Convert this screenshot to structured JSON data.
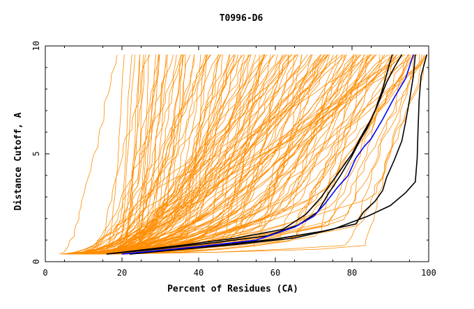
{
  "chart_data": {
    "type": "line",
    "title": "T0996-D6",
    "xlabel": "Percent of Residues (CA)",
    "ylabel": "Distance Cutoff, A",
    "xlim": [
      0,
      100
    ],
    "ylim": [
      0,
      10
    ],
    "x_ticks": [
      0,
      20,
      40,
      60,
      80,
      100
    ],
    "y_ticks": [
      0,
      5,
      10
    ],
    "x_tick_labels": [
      "0",
      "20",
      "40",
      "60",
      "80",
      "100"
    ],
    "y_tick_labels": [
      "0",
      "5",
      "10"
    ],
    "grid": false,
    "legend": "none",
    "colors": {
      "other_models": "#ff8c00",
      "highlight_black": "#000000",
      "highlight_blue": "#0000ff"
    },
    "highlighted_series": [
      {
        "color": "black",
        "points": [
          [
            16,
            0.35
          ],
          [
            30,
            0.6
          ],
          [
            45,
            0.9
          ],
          [
            58,
            1.2
          ],
          [
            66,
            1.7
          ],
          [
            71,
            2.3
          ],
          [
            74,
            3.2
          ],
          [
            77,
            4.0
          ],
          [
            80,
            4.9
          ],
          [
            82,
            5.6
          ],
          [
            84,
            6.2
          ],
          [
            86,
            7.0
          ],
          [
            88,
            8.0
          ],
          [
            89.5,
            9.0
          ],
          [
            90.5,
            9.6
          ]
        ]
      },
      {
        "color": "black",
        "points": [
          [
            16,
            0.35
          ],
          [
            35,
            0.75
          ],
          [
            50,
            1.1
          ],
          [
            62,
            1.5
          ],
          [
            68,
            2.2
          ],
          [
            72,
            3.0
          ],
          [
            76,
            4.0
          ],
          [
            80,
            5.0
          ],
          [
            83,
            6.0
          ],
          [
            85,
            6.6
          ],
          [
            87,
            7.4
          ],
          [
            89,
            8.3
          ],
          [
            91,
            9.0
          ],
          [
            93,
            9.6
          ]
        ]
      },
      {
        "color": "black",
        "points": [
          [
            22,
            0.35
          ],
          [
            45,
            0.75
          ],
          [
            60,
            1.05
          ],
          [
            72,
            1.4
          ],
          [
            81,
            1.75
          ],
          [
            83,
            2.3
          ],
          [
            86,
            2.8
          ],
          [
            88,
            3.3
          ],
          [
            89,
            3.9
          ],
          [
            91,
            4.7
          ],
          [
            93,
            5.6
          ],
          [
            94,
            6.5
          ],
          [
            95,
            7.5
          ],
          [
            96,
            8.6
          ],
          [
            96.5,
            9.6
          ]
        ]
      },
      {
        "color": "black",
        "points": [
          [
            22,
            0.35
          ],
          [
            50,
            0.8
          ],
          [
            65,
            1.1
          ],
          [
            75,
            1.5
          ],
          [
            84,
            2.1
          ],
          [
            90,
            2.6
          ],
          [
            94,
            3.2
          ],
          [
            96.5,
            3.7
          ],
          [
            97,
            4.8
          ],
          [
            97.2,
            6.0
          ],
          [
            97.5,
            7.5
          ],
          [
            98,
            8.6
          ],
          [
            99.5,
            9.6
          ]
        ]
      },
      {
        "color": "blue",
        "points": [
          [
            20,
            0.35
          ],
          [
            40,
            0.7
          ],
          [
            55,
            1.0
          ],
          [
            65,
            1.6
          ],
          [
            70,
            2.1
          ],
          [
            73,
            2.7
          ],
          [
            76,
            3.4
          ],
          [
            79,
            4.0
          ],
          [
            81,
            4.8
          ],
          [
            83,
            5.3
          ],
          [
            85,
            5.7
          ],
          [
            88,
            6.6
          ],
          [
            91,
            7.6
          ],
          [
            94,
            8.5
          ],
          [
            96,
            9.6
          ]
        ]
      }
    ]
  }
}
